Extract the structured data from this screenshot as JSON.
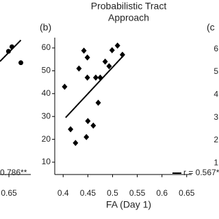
{
  "chart_data": [
    {
      "type": "scatter",
      "marker": "circle",
      "color": "#000000",
      "x": [
        0.649,
        0.656,
        0.674
      ],
      "values": [
        59,
        61,
        54
      ],
      "fit": {
        "x": [
          0.632,
          0.674
        ],
        "values": [
          54.6,
          63.9
        ]
      },
      "xlim": [
        0.632,
        0.694
      ],
      "xticks": [
        0.65
      ],
      "ylim": [
        5,
        65
      ],
      "annotation": "0.786**"
    },
    {
      "type": "scatter",
      "marker": "diamond",
      "color": "#000000",
      "panel_label": "(b)",
      "title": [
        "Probabilistic Tract",
        "Approach"
      ],
      "x_label": "FA (Day 1)",
      "x": [
        0.403,
        0.415,
        0.425,
        0.432,
        0.442,
        0.449,
        0.449,
        0.45,
        0.447,
        0.461,
        0.466,
        0.471,
        0.475,
        0.485,
        0.493,
        0.499,
        0.51,
        0.52
      ],
      "values": [
        43,
        24.4,
        18.4,
        51,
        58.8,
        55.8,
        47,
        28,
        21,
        26,
        47,
        36,
        47,
        54,
        52,
        59,
        61,
        57
      ],
      "fit": {
        "x": [
          0.405,
          0.521
        ],
        "values": [
          29.5,
          56.4
        ]
      },
      "xlim": [
        0.383,
        0.66
      ],
      "xticks": [
        0.4,
        0.45,
        0.5,
        0.55,
        0.6,
        0.65
      ],
      "ylim": [
        4.6,
        64.5
      ],
      "yticks": [
        10,
        20,
        30,
        40,
        50,
        60
      ],
      "annotation": "r = 0.567*"
    },
    {
      "type": "scatter",
      "panel_label": "(c",
      "ylim": [
        0.5,
        6.5
      ],
      "yticks": [
        1,
        2,
        3,
        4,
        5,
        6
      ]
    }
  ]
}
